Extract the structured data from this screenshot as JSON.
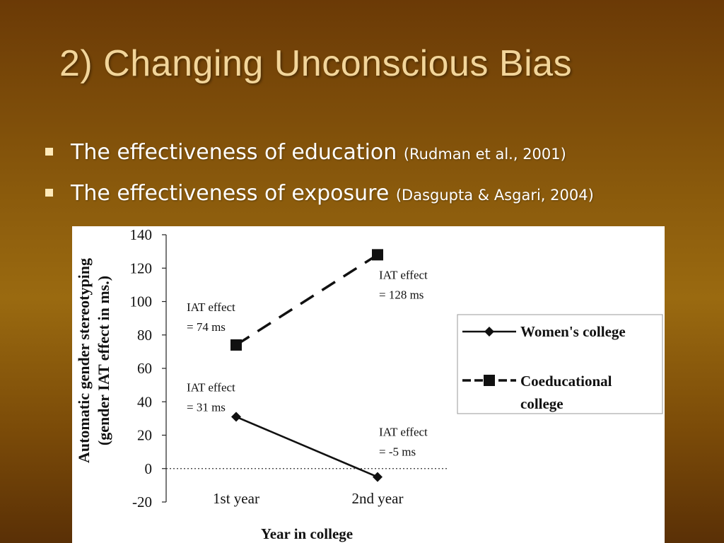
{
  "slide": {
    "title": "2) Changing Unconscious Bias",
    "bullets": [
      {
        "text": "The effectiveness of education",
        "cite": "(Rudman et al., 2001)"
      },
      {
        "text": "The effectiveness of exposure",
        "cite": "(Dasgupta & Asgari, 2004)"
      }
    ]
  },
  "colors": {
    "title": "#f2d59a",
    "bullet_text": "#ffffff",
    "bullet_mark": "#ffe9b8"
  },
  "chart_data": {
    "type": "line",
    "categories": [
      "1st year",
      "2nd year"
    ],
    "series": [
      {
        "name": "Women's college",
        "values": [
          31,
          -5
        ],
        "line": "solid",
        "marker": "diamond"
      },
      {
        "name": "Coeducational college",
        "values": [
          74,
          128
        ],
        "line": "dashed",
        "marker": "square"
      }
    ],
    "xlabel": "Year in college",
    "ylabel_lines": [
      "Automatic gender stereotyping",
      "(gender IAT effect in ms.)"
    ],
    "ylim": [
      -20,
      140
    ],
    "yticks": [
      -20,
      0,
      20,
      40,
      60,
      80,
      100,
      120,
      140
    ],
    "zero_line": "dotted",
    "legend_placement": "right",
    "annotations": [
      {
        "series": 1,
        "point": 0,
        "lines": [
          "IAT effect",
          "= 74 ms"
        ]
      },
      {
        "series": 1,
        "point": 1,
        "lines": [
          "IAT effect",
          "= 128 ms"
        ]
      },
      {
        "series": 0,
        "point": 0,
        "lines": [
          "IAT effect",
          "= 31 ms"
        ]
      },
      {
        "series": 0,
        "point": 1,
        "lines": [
          "IAT effect",
          "= -5 ms"
        ]
      }
    ]
  }
}
